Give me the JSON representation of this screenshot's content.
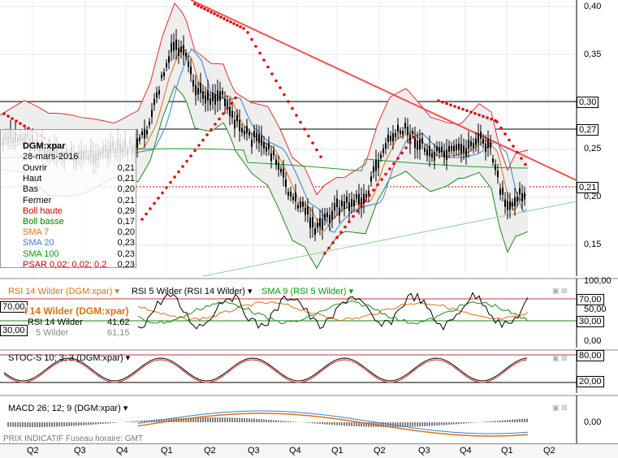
{
  "main": {
    "price_labels": [
      "0,40",
      "0,35",
      "0,25",
      "0,20",
      "0,15"
    ],
    "box_labels": [
      "0,30",
      "0,27",
      "0,21"
    ],
    "legend": {
      "symbol": "DGM:xpar",
      "date": "28-mars-2016",
      "rows": [
        {
          "k": "Ouvrir",
          "v": "0,21",
          "color": "#000000"
        },
        {
          "k": "Haut",
          "v": "0,21",
          "color": "#000000"
        },
        {
          "k": "Bas",
          "v": "0,20",
          "color": "#000000"
        },
        {
          "k": "Fermer",
          "v": "0,21",
          "color": "#000000"
        },
        {
          "k": "Boll haute",
          "v": "0,29",
          "color": "#cc0000"
        },
        {
          "k": "Boll basse",
          "v": "0,17",
          "color": "#008000"
        },
        {
          "k": "SMA 7",
          "v": "0,20",
          "color": "#e07010"
        },
        {
          "k": "SMA 20",
          "v": "0,23",
          "color": "#3a7fd0"
        },
        {
          "k": "SMA 100",
          "v": "0,23",
          "color": "#00a000"
        },
        {
          "k": "PSAR 0,02; 0,02; 0,2",
          "v": "0,23",
          "color": "#cc0000"
        }
      ]
    }
  },
  "rsi": {
    "titles": [
      "RSI 14 Wilder (DGM:xpar)",
      "RSI 5 Wilder (RSI 14 Wilder)",
      "SMA 9 (RSI 5 Wilder)"
    ],
    "title_colors": [
      "#e07010",
      "#000000",
      "#00a000"
    ],
    "axis_labels": [
      "100,00",
      "50,00",
      "0,00"
    ],
    "box_labels": [
      "70,00",
      "30,00"
    ],
    "left_box_labels": [
      "70,00",
      "30,00"
    ],
    "overlay_title": "I 14 Wilder (DGM:xpar)",
    "overlay_row": {
      "k": "RSI 14 Wilder",
      "v": "41,62"
    },
    "overlay_row2": {
      "k": "5 Wilder",
      "v": "61,15"
    }
  },
  "stoch": {
    "title": "STOC-S 10; 3; 3 (DGM:xpar)",
    "box_labels": [
      "80,00",
      "20,00"
    ]
  },
  "macd": {
    "title": "MACD 26; 12; 9 (DGM:xpar)",
    "axis_labels": [
      "0,00"
    ],
    "footer": "PRIX INDICATIF   Fuseau horaire: GMT"
  },
  "xaxis": [
    "Q2",
    "Q3",
    "Q4",
    "Q1",
    "Q2",
    "Q3",
    "Q4",
    "Q1",
    "Q2",
    "Q3",
    "Q4",
    "Q1",
    "Q2"
  ],
  "colors": {
    "up": "#000000",
    "boll_high": "#e03030",
    "boll_low": "#1a8a1a",
    "sma7": "#e07010",
    "sma20": "#3a7fd0",
    "sma100": "#20a020",
    "psar": "#e00000",
    "trend": "#f05050"
  }
}
